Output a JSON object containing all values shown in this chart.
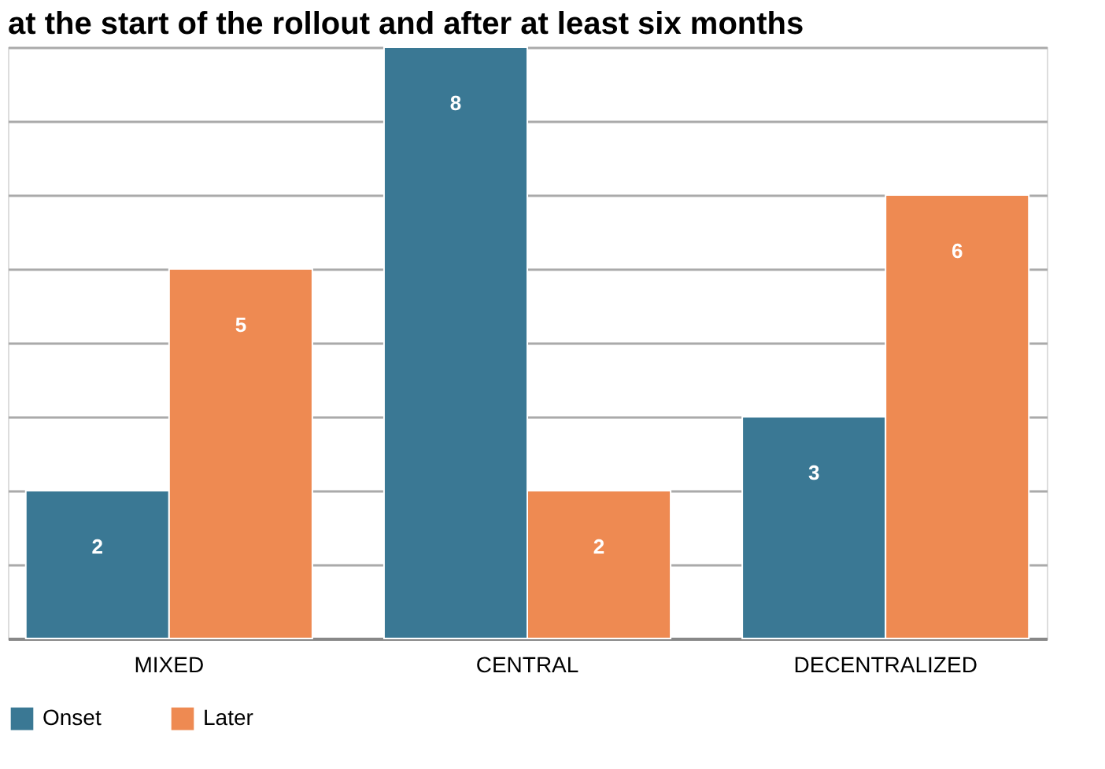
{
  "chart_data": {
    "type": "bar",
    "title": "at the start of the rollout and after at least six months",
    "categories": [
      "MIXED",
      "CENTRAL",
      "DECENTRALIZED"
    ],
    "series": [
      {
        "name": "Onset",
        "color": "#3a7894",
        "values": [
          2,
          8,
          3
        ]
      },
      {
        "name": "Later",
        "color": "#ee8a52",
        "values": [
          5,
          2,
          6
        ]
      }
    ],
    "ylim": [
      0,
      8
    ],
    "yticks": [
      {
        "value": 0,
        "label": null
      },
      {
        "value": 1,
        "label": null
      },
      {
        "value": 2,
        "label": null
      },
      {
        "value": 3,
        "label": null
      },
      {
        "value": 4,
        "label": null
      },
      {
        "value": 5,
        "label": null
      },
      {
        "value": 6,
        "label": null
      },
      {
        "value": 7,
        "label": null
      },
      {
        "value": 8,
        "label": null
      }
    ],
    "grid": "y",
    "data_labels": true,
    "legend": "bottom",
    "tick_labels": "x"
  }
}
